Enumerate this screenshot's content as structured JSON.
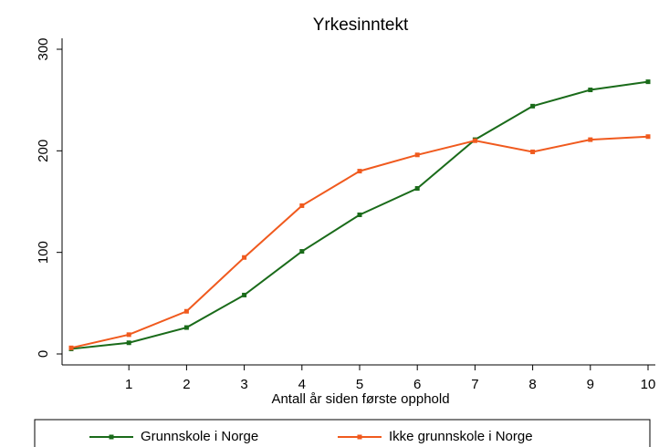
{
  "chart_data": {
    "type": "line",
    "title": "Yrkesinntekt",
    "x_label": "Antall år siden første opphold",
    "x": [
      0,
      1,
      2,
      3,
      4,
      5,
      6,
      7,
      8,
      9,
      10
    ],
    "series": [
      {
        "name": "Grunnskole i Norge",
        "color": "#1a6b1a",
        "values": [
          5,
          11,
          26,
          58,
          101,
          137,
          163,
          211,
          244,
          260,
          268
        ]
      },
      {
        "name": "Ikke grunnskole i Norge",
        "color": "#f05a1e",
        "values": [
          6,
          19,
          42,
          95,
          146,
          180,
          196,
          210,
          199,
          211,
          214
        ]
      }
    ],
    "xlim": [
      0,
      10
    ],
    "xticks": [
      1,
      2,
      3,
      4,
      5,
      6,
      7,
      8,
      9,
      10
    ],
    "ylim": [
      0,
      300
    ],
    "yticks": [
      0,
      100,
      200,
      300
    ],
    "grid": false,
    "legend": "bottom"
  }
}
